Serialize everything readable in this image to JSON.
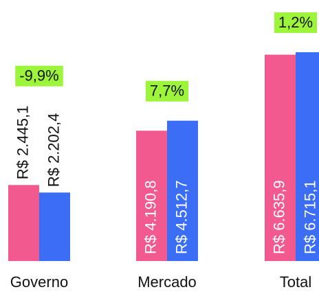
{
  "chart_data": {
    "type": "bar",
    "categories": [
      "Governo",
      "Mercado",
      "Total"
    ],
    "series": [
      {
        "color": "#f25a8f",
        "values": [
          2445.1,
          4190.8,
          6635.9
        ],
        "value_labels": [
          "R$ 2.445,1",
          "R$ 4.190,8",
          "R$ 6.635,9"
        ]
      },
      {
        "color": "#3b6ef5",
        "values": [
          2202.4,
          4512.7,
          6715.1
        ],
        "value_labels": [
          "R$ 2.202,4",
          "R$ 4.512,7",
          "R$ 6.715,1"
        ]
      }
    ],
    "annotations": [
      "-9,9%",
      "7,7%",
      "1,2%"
    ],
    "annotation_color": "#9df53b"
  }
}
